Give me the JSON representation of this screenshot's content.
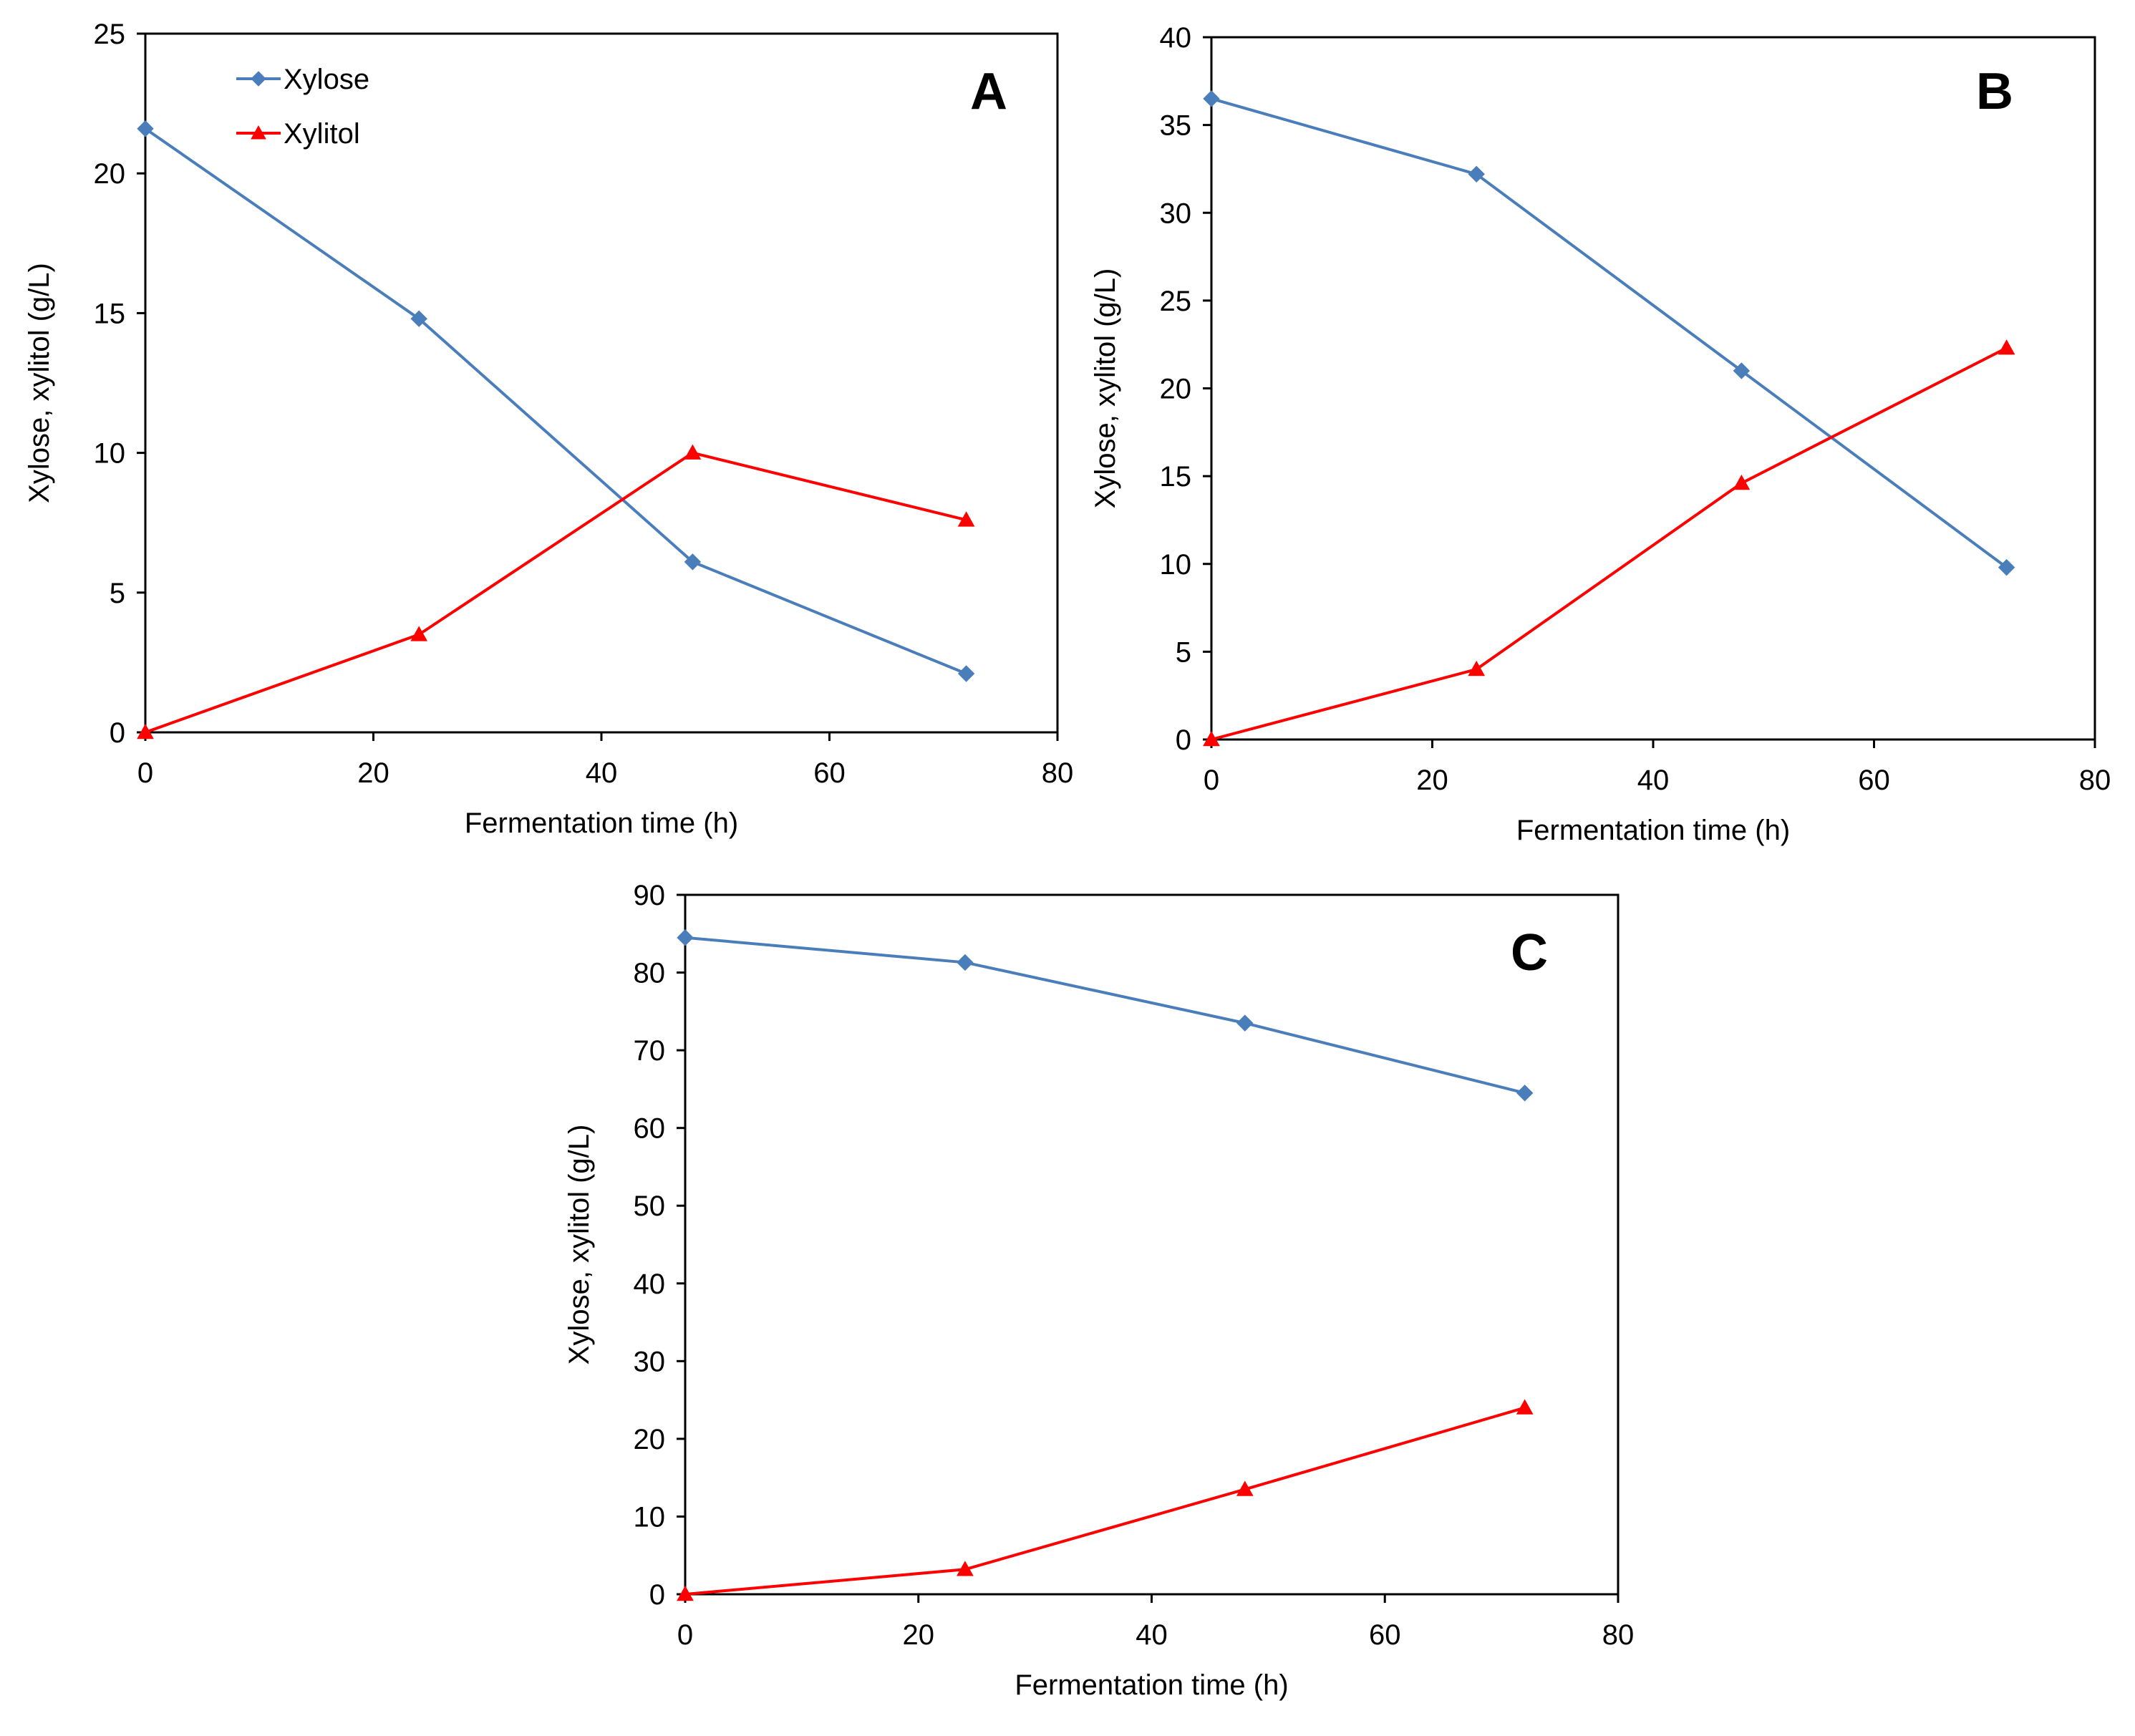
{
  "chart_data": [
    {
      "type": "line",
      "panel": "A",
      "x": [
        0,
        24,
        48,
        72
      ],
      "series": [
        {
          "name": "Xylose",
          "values": [
            21.6,
            14.8,
            6.1,
            2.1
          ],
          "color": "#4a7ebb",
          "marker": "diamond"
        },
        {
          "name": "Xylitol",
          "values": [
            0,
            3.5,
            10.0,
            7.6
          ],
          "color": "#ff0000",
          "marker": "triangle"
        }
      ],
      "xlabel": "Fermentation time (h)",
      "ylabel": "Xylose, xylitol (g/L)",
      "xlim": [
        0,
        80
      ],
      "ylim": [
        0,
        25
      ],
      "xticks": [
        0,
        20,
        40,
        60,
        80
      ],
      "yticks": [
        0,
        5,
        10,
        15,
        20,
        25
      ],
      "legend": "top-left",
      "grid": false
    },
    {
      "type": "line",
      "panel": "B",
      "x": [
        0,
        24,
        48,
        72
      ],
      "series": [
        {
          "name": "Xylose",
          "values": [
            36.5,
            32.2,
            21.0,
            9.8
          ],
          "color": "#4a7ebb",
          "marker": "diamond"
        },
        {
          "name": "Xylitol",
          "values": [
            0,
            4.0,
            14.6,
            22.3
          ],
          "color": "#ff0000",
          "marker": "triangle"
        }
      ],
      "xlabel": "Fermentation time (h)",
      "ylabel": "Xylose, xylitol (g/L)",
      "xlim": [
        0,
        80
      ],
      "ylim": [
        0,
        40
      ],
      "xticks": [
        0,
        20,
        40,
        60,
        80
      ],
      "yticks": [
        0,
        5,
        10,
        15,
        20,
        25,
        30,
        35,
        40
      ],
      "grid": false
    },
    {
      "type": "line",
      "panel": "C",
      "x": [
        0,
        24,
        48,
        72
      ],
      "series": [
        {
          "name": "Xylose",
          "values": [
            84.5,
            81.3,
            73.5,
            64.5
          ],
          "color": "#4a7ebb",
          "marker": "diamond"
        },
        {
          "name": "Xylitol",
          "values": [
            0,
            3.2,
            13.5,
            24.0
          ],
          "color": "#ff0000",
          "marker": "triangle"
        }
      ],
      "xlabel": "Fermentation time (h)",
      "ylabel": "Xylose, xylitol (g/L)",
      "xlim": [
        0,
        80
      ],
      "ylim": [
        0,
        90
      ],
      "xticks": [
        0,
        20,
        40,
        60,
        80
      ],
      "yticks": [
        0,
        10,
        20,
        30,
        40,
        50,
        60,
        70,
        80,
        90
      ],
      "grid": false
    }
  ]
}
